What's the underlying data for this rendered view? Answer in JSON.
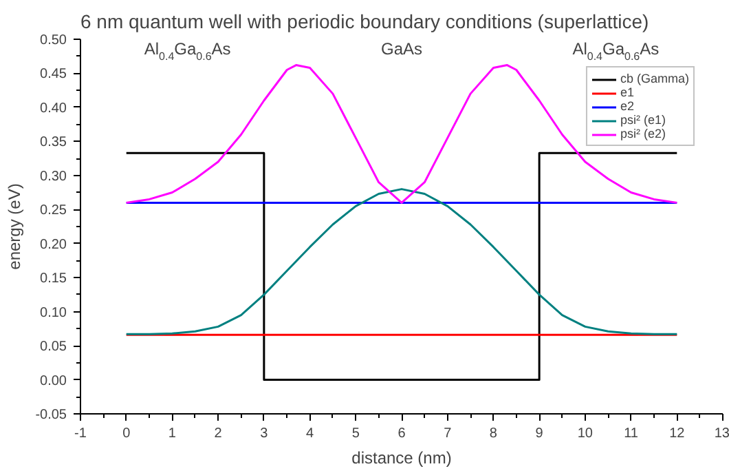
{
  "chart_data": {
    "type": "line",
    "title": "6 nm quantum well with periodic boundary conditions (superlattice)",
    "xlabel": "distance (nm)",
    "ylabel": "energy (eV)",
    "xlim": [
      -1,
      13
    ],
    "xticks": [
      -1,
      0,
      1,
      2,
      3,
      4,
      5,
      6,
      7,
      8,
      9,
      10,
      11,
      12,
      13
    ],
    "ylim": [
      -0.05,
      0.5
    ],
    "yticks": [
      {
        "value": -0.05,
        "label": "-0.05"
      },
      {
        "value": 0,
        "label": "0.00"
      },
      {
        "value": 0.05,
        "label": "0.05"
      },
      {
        "value": 0.1,
        "label": "0.10"
      },
      {
        "value": 0.15,
        "label": "0.15"
      },
      {
        "value": 0.2,
        "label": "0.20"
      },
      {
        "value": 0.25,
        "label": "0.25"
      },
      {
        "value": 0.3,
        "label": "0.30"
      },
      {
        "value": 0.35,
        "label": "0.35"
      },
      {
        "value": 0.4,
        "label": "0.40"
      },
      {
        "value": 0.45,
        "label": "0.45"
      },
      {
        "value": 0.5,
        "label": "0.50"
      }
    ],
    "grid": false,
    "legend": "top right",
    "marker": "none",
    "line_style": "solid",
    "annotations": [
      "Al$_{0.4}$Ga$_{0.6}$As",
      "GaAs",
      "Al$_{0.4}$Ga$_{0.6}$As"
    ],
    "series": [
      {
        "name": "cb (Gamma)",
        "color": "#000000",
        "x": [
          0,
          3,
          3,
          9,
          9,
          12
        ],
        "values": [
          0.333,
          0.333,
          0,
          0,
          0.333,
          0.333
        ]
      },
      {
        "name": "e1",
        "color": "#ff0000",
        "x": [
          0,
          12
        ],
        "values": [
          0.066,
          0.066
        ]
      },
      {
        "name": "e2",
        "color": "#0000ff",
        "x": [
          0,
          12
        ],
        "values": [
          0.26,
          0.26
        ]
      },
      {
        "name": "psi² (e1)",
        "color": "#008080",
        "x": [
          0,
          0.5,
          1,
          1.5,
          2,
          2.5,
          3,
          3.5,
          4,
          4.5,
          5,
          5.5,
          6,
          6.5,
          7,
          7.5,
          8,
          8.5,
          9,
          9.5,
          10,
          10.5,
          11,
          11.5,
          12
        ],
        "values": [
          0.067,
          0.067,
          0.068,
          0.071,
          0.078,
          0.095,
          0.125,
          0.16,
          0.195,
          0.228,
          0.255,
          0.273,
          0.28,
          0.273,
          0.255,
          0.228,
          0.195,
          0.16,
          0.125,
          0.095,
          0.078,
          0.071,
          0.068,
          0.067,
          0.067
        ]
      },
      {
        "name": "psi² (e2)",
        "color": "#ff00ff",
        "x": [
          0,
          0.5,
          1,
          1.5,
          2,
          2.5,
          3,
          3.5,
          3.7,
          4,
          4.5,
          5,
          5.5,
          6,
          6.5,
          7,
          7.5,
          8,
          8.3,
          8.5,
          9,
          9.5,
          10,
          10.5,
          11,
          11.5,
          12
        ],
        "values": [
          0.26,
          0.265,
          0.275,
          0.295,
          0.32,
          0.36,
          0.41,
          0.455,
          0.462,
          0.458,
          0.42,
          0.355,
          0.29,
          0.26,
          0.29,
          0.355,
          0.42,
          0.458,
          0.462,
          0.455,
          0.41,
          0.36,
          0.32,
          0.295,
          0.275,
          0.265,
          0.26
        ]
      }
    ]
  }
}
